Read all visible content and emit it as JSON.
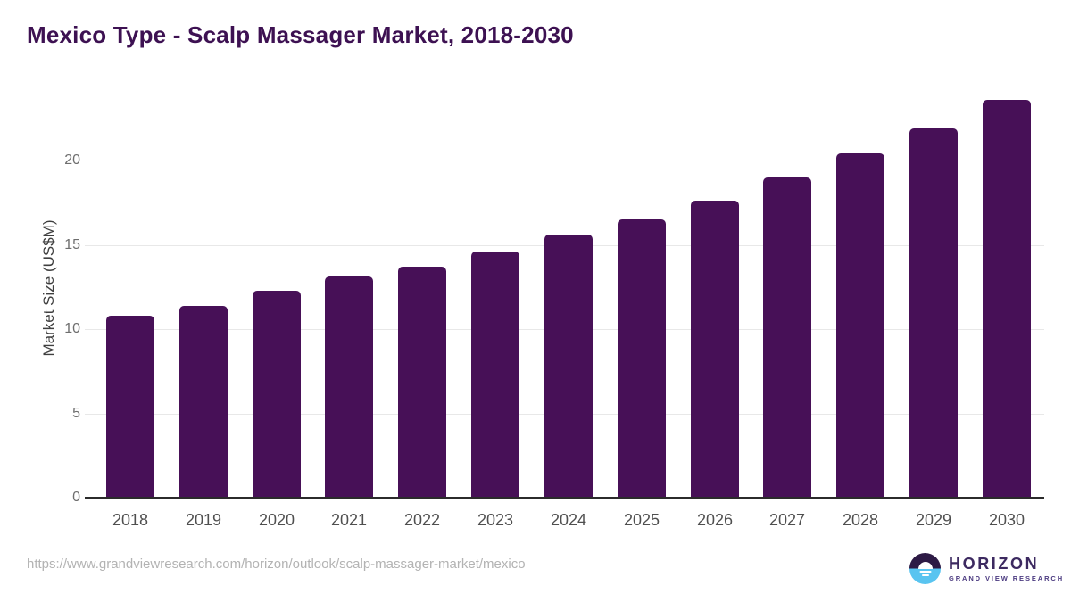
{
  "title": "Mexico Type - Scalp Massager Market, 2018-2030",
  "chart_data": {
    "type": "bar",
    "title": "Mexico Type - Scalp Massager Market, 2018-2030",
    "categories": [
      "2018",
      "2019",
      "2020",
      "2021",
      "2022",
      "2023",
      "2024",
      "2025",
      "2026",
      "2027",
      "2028",
      "2029",
      "2030"
    ],
    "values": [
      10.8,
      11.4,
      12.3,
      13.1,
      13.7,
      14.6,
      15.6,
      16.5,
      17.6,
      19.0,
      20.4,
      21.9,
      23.6
    ],
    "xlabel": "",
    "ylabel": "Market Size (US$M)",
    "ylim": [
      0,
      24.6
    ],
    "yticks": [
      0,
      5,
      10,
      15,
      20
    ],
    "grid": true,
    "legend": false,
    "bar_color": "#471057"
  },
  "footer": {
    "source_url": "https://www.grandviewresearch.com/horizon/outlook/scalp-massager-market/mexico"
  },
  "logo": {
    "title": "HORIZON",
    "subtitle": "GRAND VIEW RESEARCH"
  },
  "colors": {
    "title": "#3d1152",
    "bar": "#471057",
    "axis_line": "#2b2b2b",
    "gridline": "#e8e8e8",
    "y_tick": "#6e6e6e",
    "x_tick": "#4f4f4f",
    "url_text": "#b3b3b3",
    "logo_dark_half": "#2d1a45",
    "logo_blue_half": "#59c4f0",
    "logo_title_text": "#3c2960"
  }
}
